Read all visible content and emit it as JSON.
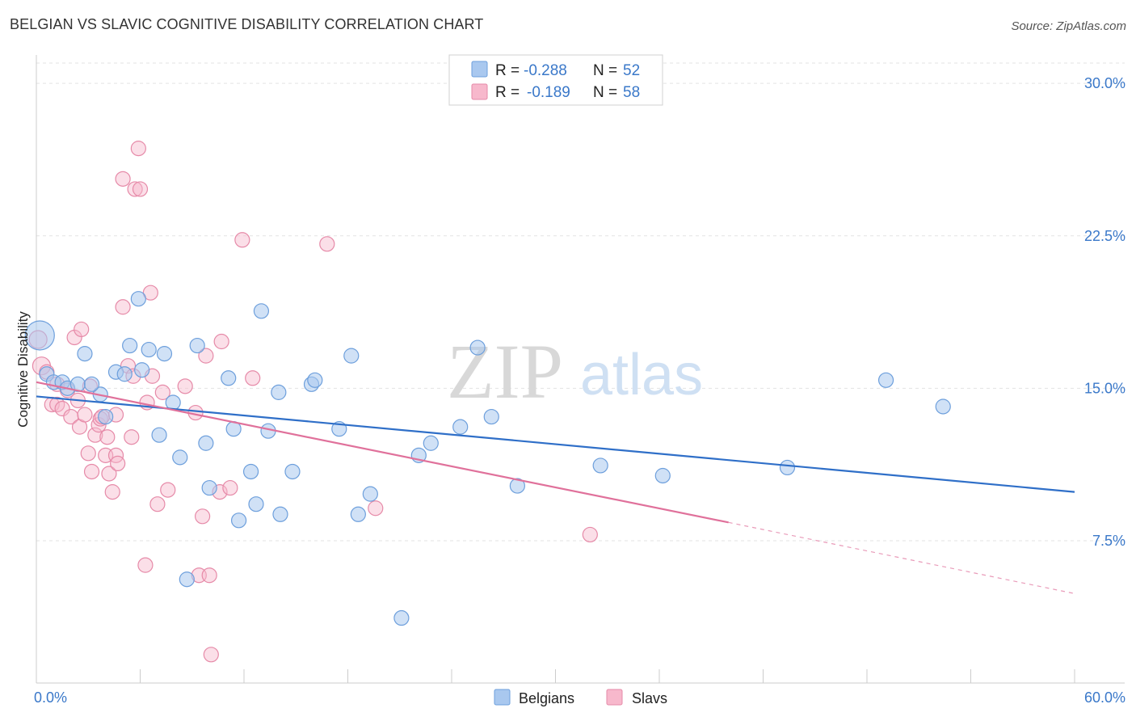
{
  "title": "BELGIAN VS SLAVIC COGNITIVE DISABILITY CORRELATION CHART",
  "source": "Source: ZipAtlas.com",
  "watermark": {
    "zip": "ZIP",
    "atlas": "atlas"
  },
  "colors": {
    "belgians_fill": "#a9c8ef",
    "belgians_stroke": "#6d9fdc",
    "belgians_line": "#2f6fc8",
    "slavs_fill": "#f7b8cc",
    "slavs_stroke": "#e68aa8",
    "slavs_line": "#e0719b",
    "grid": "#e3e3e3",
    "axis": "#cccccc",
    "label_blue": "#3a78c9"
  },
  "legend": {
    "rows": [
      {
        "r_label": "R =",
        "r_value": "-0.288",
        "n_label": "N =",
        "n_value": "52"
      },
      {
        "r_label": "R =",
        "r_value": "-0.189",
        "n_label": "N =",
        "n_value": "58"
      }
    ]
  },
  "chart_data": {
    "type": "scatter",
    "title": "BELGIAN VS SLAVIC COGNITIVE DISABILITY CORRELATION CHART",
    "xlabel": "",
    "ylabel": "Cognitive Disability",
    "xlim": [
      0,
      60
    ],
    "ylim": [
      0.5,
      31
    ],
    "x_tick_labels": [
      "0.0%",
      "60.0%"
    ],
    "y_ticks": [
      7.5,
      15.0,
      22.5,
      30.0
    ],
    "y_tick_labels": [
      "7.5%",
      "15.0%",
      "22.5%",
      "30.0%"
    ],
    "legend_position": "top-center",
    "series": [
      {
        "name": "Belgians",
        "trend": {
          "x": [
            0,
            60
          ],
          "y": [
            14.6,
            9.9
          ],
          "dashed_from": null
        },
        "points": [
          [
            0.2,
            17.6,
            18
          ],
          [
            0.6,
            15.7,
            9
          ],
          [
            1.0,
            15.3,
            9
          ],
          [
            1.5,
            15.3,
            9
          ],
          [
            1.8,
            15.0,
            9
          ],
          [
            2.4,
            15.2,
            9
          ],
          [
            2.8,
            16.7,
            9
          ],
          [
            3.7,
            14.7,
            9
          ],
          [
            3.2,
            15.2,
            9
          ],
          [
            4.0,
            13.6,
            9
          ],
          [
            4.6,
            15.8,
            9
          ],
          [
            5.1,
            15.7,
            9
          ],
          [
            5.4,
            17.1,
            9
          ],
          [
            5.9,
            19.4,
            9
          ],
          [
            6.1,
            15.9,
            9
          ],
          [
            6.5,
            16.9,
            9
          ],
          [
            7.1,
            12.7,
            9
          ],
          [
            7.4,
            16.7,
            9
          ],
          [
            7.9,
            14.3,
            9
          ],
          [
            8.3,
            11.6,
            9
          ],
          [
            8.7,
            5.6,
            9
          ],
          [
            9.3,
            17.1,
            9
          ],
          [
            9.8,
            12.3,
            9
          ],
          [
            10.0,
            10.1,
            9
          ],
          [
            11.1,
            15.5,
            9
          ],
          [
            11.4,
            13.0,
            9
          ],
          [
            11.7,
            8.5,
            9
          ],
          [
            12.4,
            10.9,
            9
          ],
          [
            12.7,
            9.3,
            9
          ],
          [
            13.0,
            18.8,
            9
          ],
          [
            13.4,
            12.9,
            9
          ],
          [
            14.1,
            8.8,
            9
          ],
          [
            14.0,
            14.8,
            9
          ],
          [
            14.8,
            10.9,
            9
          ],
          [
            15.9,
            15.2,
            9
          ],
          [
            16.1,
            15.4,
            9
          ],
          [
            17.5,
            13.0,
            9
          ],
          [
            18.2,
            16.6,
            9
          ],
          [
            18.6,
            8.8,
            9
          ],
          [
            19.3,
            9.8,
            9
          ],
          [
            21.1,
            3.7,
            9
          ],
          [
            22.1,
            11.7,
            9
          ],
          [
            22.8,
            12.3,
            9
          ],
          [
            24.5,
            13.1,
            9
          ],
          [
            25.5,
            17.0,
            9
          ],
          [
            26.3,
            13.6,
            9
          ],
          [
            27.8,
            10.2,
            9
          ],
          [
            32.6,
            11.2,
            9
          ],
          [
            36.2,
            10.7,
            9
          ],
          [
            43.4,
            11.1,
            9
          ],
          [
            49.1,
            15.4,
            9
          ],
          [
            52.4,
            14.1,
            9
          ]
        ]
      },
      {
        "name": "Slavs",
        "trend": {
          "x": [
            0,
            40
          ],
          "y": [
            15.3,
            8.4
          ],
          "dashed_from": 40,
          "dashed_to": [
            60,
            4.9
          ]
        },
        "points": [
          [
            0.1,
            17.4,
            11
          ],
          [
            0.3,
            16.1,
            11
          ],
          [
            0.6,
            15.8,
            9
          ],
          [
            0.9,
            14.2,
            9
          ],
          [
            1.2,
            15.2,
            9
          ],
          [
            1.2,
            14.2,
            9
          ],
          [
            1.5,
            14.0,
            9
          ],
          [
            1.8,
            14.9,
            9
          ],
          [
            2.0,
            13.6,
            9
          ],
          [
            2.2,
            17.5,
            9
          ],
          [
            2.4,
            14.4,
            9
          ],
          [
            2.5,
            13.1,
            9
          ],
          [
            2.6,
            17.9,
            9
          ],
          [
            2.8,
            13.7,
            9
          ],
          [
            3.0,
            11.8,
            9
          ],
          [
            3.1,
            15.1,
            9
          ],
          [
            3.2,
            10.9,
            9
          ],
          [
            3.4,
            12.7,
            9
          ],
          [
            3.6,
            13.2,
            9
          ],
          [
            3.7,
            13.5,
            9
          ],
          [
            3.8,
            13.6,
            9
          ],
          [
            4.0,
            11.7,
            9
          ],
          [
            4.1,
            12.6,
            9
          ],
          [
            4.2,
            10.8,
            9
          ],
          [
            4.4,
            9.9,
            9
          ],
          [
            4.6,
            11.7,
            9
          ],
          [
            4.6,
            13.7,
            9
          ],
          [
            4.7,
            11.3,
            9
          ],
          [
            5.0,
            19.0,
            9
          ],
          [
            5.0,
            25.3,
            9
          ],
          [
            5.3,
            16.1,
            9
          ],
          [
            5.5,
            12.6,
            9
          ],
          [
            5.6,
            15.6,
            9
          ],
          [
            5.7,
            24.8,
            9
          ],
          [
            5.9,
            26.8,
            9
          ],
          [
            6.0,
            24.8,
            9
          ],
          [
            6.3,
            6.3,
            9
          ],
          [
            6.4,
            14.3,
            9
          ],
          [
            6.6,
            19.7,
            9
          ],
          [
            6.7,
            15.6,
            9
          ],
          [
            7.0,
            9.3,
            9
          ],
          [
            7.3,
            14.8,
            9
          ],
          [
            7.6,
            10.0,
            9
          ],
          [
            8.6,
            15.1,
            9
          ],
          [
            9.2,
            13.8,
            9
          ],
          [
            9.4,
            5.8,
            9
          ],
          [
            9.6,
            8.7,
            9
          ],
          [
            9.8,
            16.6,
            9
          ],
          [
            10.0,
            5.8,
            9
          ],
          [
            10.1,
            1.9,
            9
          ],
          [
            10.6,
            9.9,
            9
          ],
          [
            10.7,
            17.3,
            9
          ],
          [
            11.2,
            10.1,
            9
          ],
          [
            11.9,
            22.3,
            9
          ],
          [
            12.5,
            15.5,
            9
          ],
          [
            16.8,
            22.1,
            9
          ],
          [
            19.6,
            9.1,
            9
          ],
          [
            32.0,
            7.8,
            9
          ]
        ]
      }
    ]
  },
  "bottom_legend": {
    "items": [
      "Belgians",
      "Slavs"
    ]
  }
}
